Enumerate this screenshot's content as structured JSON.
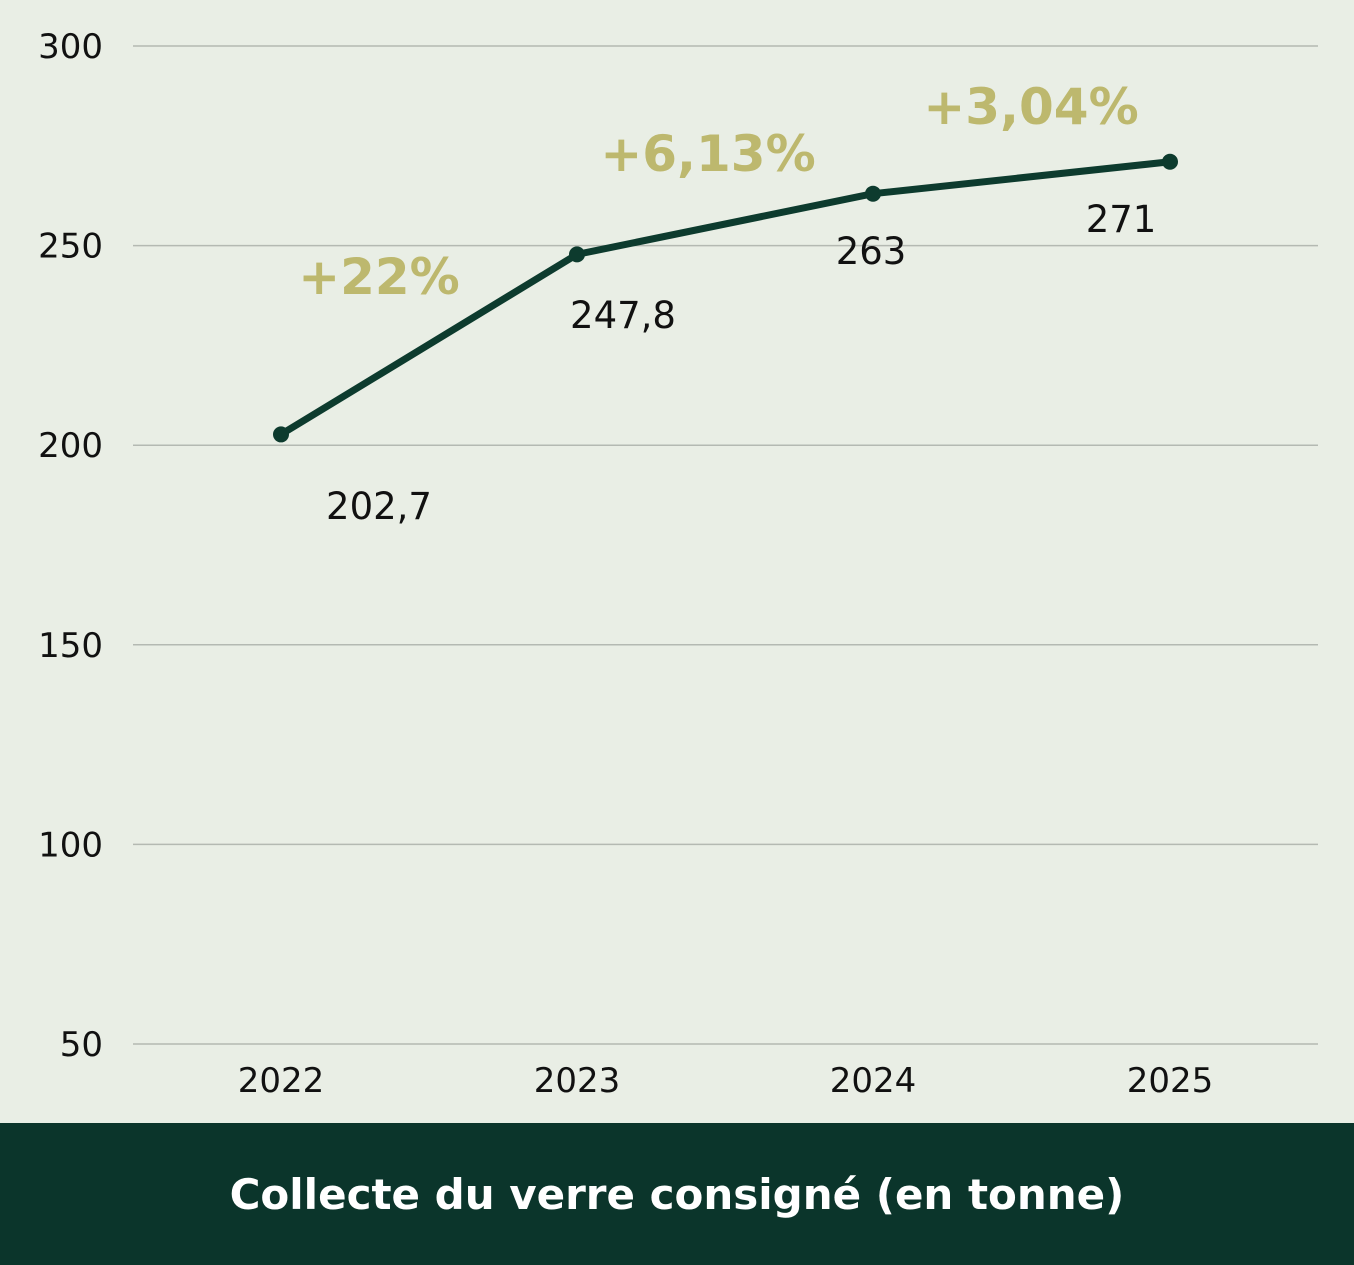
{
  "chart_data": {
    "type": "line",
    "title": "Collecte du verre consigné (en tonne)",
    "categories": [
      "2022",
      "2023",
      "2024",
      "2025"
    ],
    "series": [
      {
        "values": [
          202.7,
          247.8,
          263,
          271
        ],
        "labels": [
          "202,7",
          "247,8",
          "263",
          "271"
        ]
      }
    ],
    "growth_labels": [
      "+22%",
      "+6,13%",
      "+3,04%"
    ],
    "yticks": [
      50,
      100,
      150,
      200,
      250,
      300
    ],
    "ylim": [
      50,
      300
    ],
    "grid": true,
    "legend": "none",
    "colors": {
      "line": "#0d3b2e",
      "growth": "#bdb86e",
      "grid": "#b4b9b2",
      "background": "#e9eee5",
      "footer": "#0b352b"
    }
  }
}
